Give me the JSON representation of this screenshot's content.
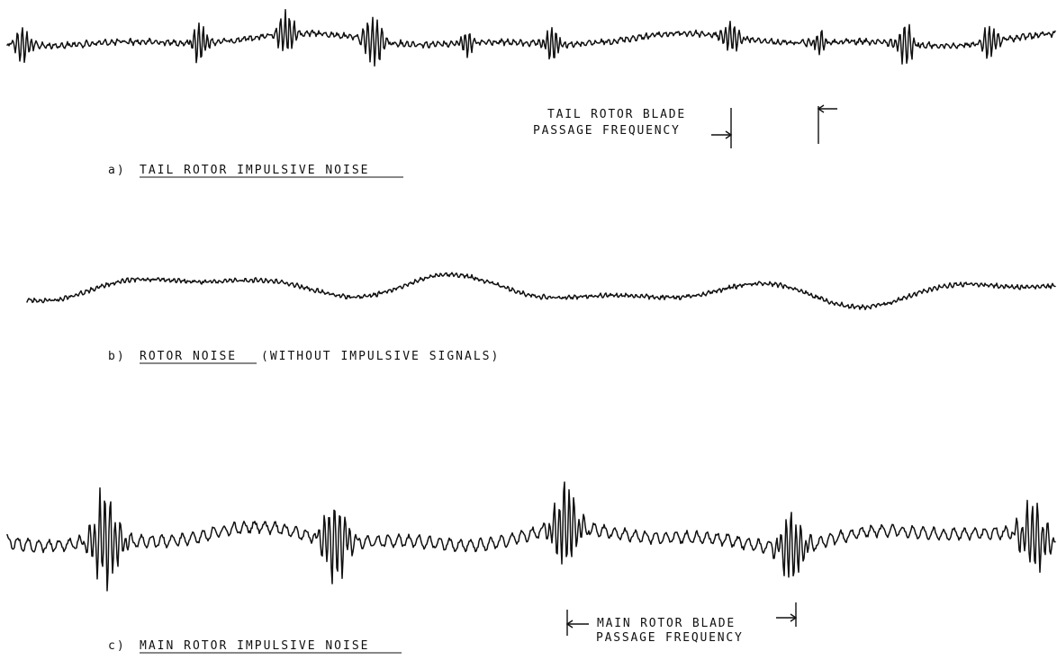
{
  "panels": [
    {
      "letter": "a)",
      "caption": "TAIL ROTOR IMPULSIVE NOISE",
      "annotation": {
        "line1": "TAIL ROTOR BLADE",
        "line2": "PASSAGE FREQUENCY"
      },
      "signal": "tail-rotor-impulsive"
    },
    {
      "letter": "b)",
      "caption": "ROTOR NOISE",
      "caption_extra": "(WITHOUT IMPULSIVE SIGNALS)",
      "signal": "rotor-noise"
    },
    {
      "letter": "c)",
      "caption": "MAIN ROTOR IMPULSIVE NOISE",
      "annotation": {
        "line1": "MAIN ROTOR BLADE",
        "line2": "PASSAGE FREQUENCY"
      },
      "signal": "main-rotor-impulsive"
    }
  ],
  "colors": {
    "ink": "#111111",
    "paper": "#ffffff"
  }
}
